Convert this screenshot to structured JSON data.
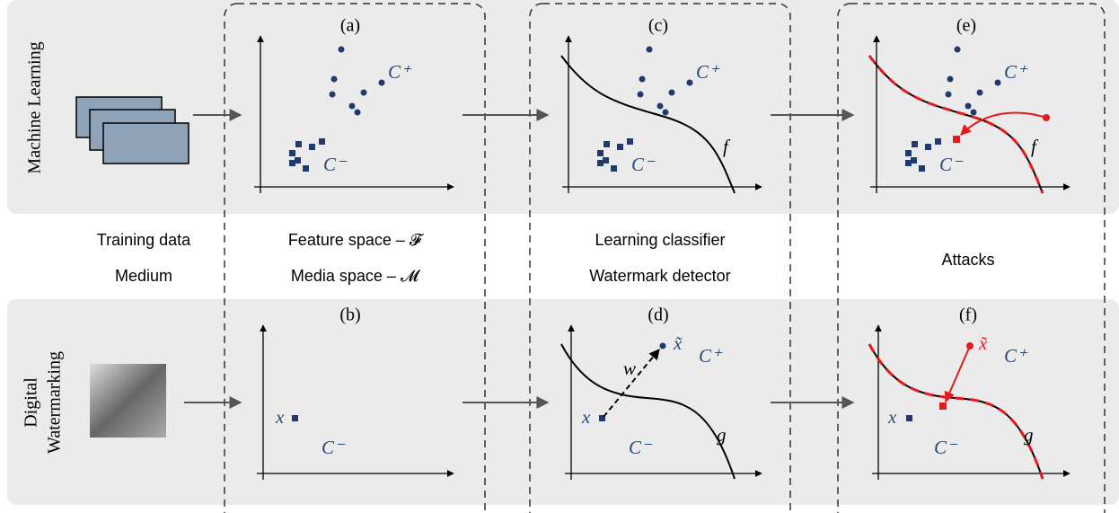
{
  "rows": {
    "machine_learning": "Machine Learning",
    "digital_watermarking": [
      "Digital",
      "Watermarking"
    ]
  },
  "captions": {
    "training_data": "Training data",
    "medium": "Medium",
    "feature_space": "Feature space – 𝓕",
    "media_space": "Media space – 𝓜",
    "learning_classifier": "Learning classifier",
    "watermark_detector": "Watermark detector",
    "attacks": "Attacks"
  },
  "panels": {
    "a": {
      "label": "(a)",
      "positive": "C⁺",
      "negative": "C⁻"
    },
    "b": {
      "label": "(b)",
      "point": "x",
      "negative": "C⁻"
    },
    "c": {
      "label": "(c)",
      "positive": "C⁺",
      "negative": "C⁻",
      "boundary": "f"
    },
    "d": {
      "label": "(d)",
      "point": "x",
      "marked": "x̃",
      "watermark": "w",
      "positive": "C⁺",
      "negative": "C⁻",
      "boundary": "g"
    },
    "e": {
      "label": "(e)",
      "positive": "C⁺",
      "negative": "C⁻",
      "boundary": "f"
    },
    "f": {
      "label": "(f)",
      "point": "x",
      "marked": "x̃",
      "positive": "C⁺",
      "negative": "C⁻",
      "boundary": "g"
    }
  }
}
